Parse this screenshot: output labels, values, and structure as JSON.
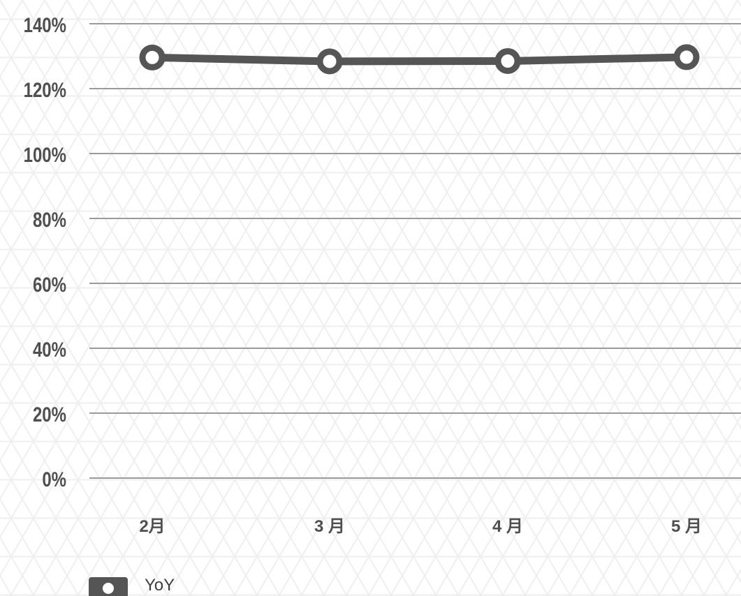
{
  "chart_data": {
    "type": "line",
    "categories": [
      "2月",
      "3 月",
      "4 月",
      "5 月"
    ],
    "series": [
      {
        "name": "YoY",
        "values": [
          129.6,
          128.4,
          128.5,
          129.7
        ],
        "color": "#555555"
      }
    ],
    "ylim": [
      0,
      140
    ],
    "y_ticks": [
      0,
      20,
      40,
      60,
      80,
      100,
      120,
      140
    ],
    "y_tick_labels": [
      "0%",
      "20%",
      "40%",
      "60%",
      "80%",
      "100%",
      "120%",
      "140%"
    ],
    "grid": true,
    "legend_position": "bottom-left",
    "colors": {
      "background": "#ffffff",
      "pattern": "#efefef",
      "grid": "#9a9a9a",
      "axis_text": "#4f4f4f",
      "line": "#555555",
      "marker_fill": "#ffffff"
    }
  }
}
